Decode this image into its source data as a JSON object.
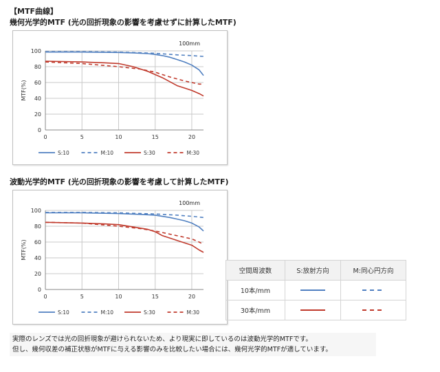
{
  "headings": {
    "section": "【MTF曲線】",
    "geometric": "幾何光学的MTF (光の回折現象の影響を考慮せずに計算したMTF)",
    "wave": "波動光学的MTF (光の回折現象の影響を考慮して計算したMTF)"
  },
  "colors": {
    "sagittal": "#4f7fc0",
    "meridional_10": "#4f7fc0",
    "series_30": "#c0392b"
  },
  "chart_data": [
    {
      "type": "line",
      "title": "",
      "annotation": "100mm",
      "ylabel": "MTF(%)",
      "xlabel": "",
      "xlim": [
        0,
        21.6
      ],
      "ylim": [
        0,
        100
      ],
      "xticks": [
        0,
        5,
        10,
        15,
        20
      ],
      "yticks": [
        0,
        20,
        40,
        60,
        80,
        100
      ],
      "grid": true,
      "legend_position": "bottom",
      "series": [
        {
          "name": "S:10",
          "color": "#4f7fc0",
          "dash": "solid",
          "x": [
            0,
            5,
            10,
            12,
            14,
            15,
            16,
            17,
            18,
            19,
            20,
            21,
            21.6
          ],
          "y": [
            98.5,
            98.5,
            98,
            97.5,
            96.5,
            95.5,
            94,
            92,
            89,
            86,
            82,
            76,
            69
          ]
        },
        {
          "name": "M:10",
          "color": "#4f7fc0",
          "dash": "dashed",
          "x": [
            0,
            5,
            10,
            15,
            18,
            20,
            21.6
          ],
          "y": [
            99,
            99,
            98.5,
            97,
            95,
            94,
            93
          ]
        },
        {
          "name": "S:30",
          "color": "#c0392b",
          "dash": "solid",
          "x": [
            0,
            5,
            8,
            10,
            12,
            14,
            16,
            18,
            19,
            20,
            21,
            21.6
          ],
          "y": [
            87,
            86,
            85,
            84,
            80,
            74,
            66,
            56,
            53,
            50,
            46,
            43
          ]
        },
        {
          "name": "M:30",
          "color": "#c0392b",
          "dash": "dashed",
          "x": [
            0,
            5,
            10,
            13,
            15,
            17,
            19,
            20,
            21,
            21.6
          ],
          "y": [
            86,
            84,
            80,
            77,
            73,
            67,
            62,
            60,
            58,
            58
          ]
        }
      ]
    },
    {
      "type": "line",
      "title": "",
      "annotation": "100mm",
      "ylabel": "MTF(%)",
      "xlabel": "",
      "xlim": [
        0,
        21.6
      ],
      "ylim": [
        0,
        100
      ],
      "xticks": [
        0,
        5,
        10,
        15,
        20
      ],
      "yticks": [
        0,
        20,
        40,
        60,
        80,
        100
      ],
      "grid": true,
      "legend_position": "bottom",
      "series": [
        {
          "name": "S:10",
          "color": "#4f7fc0",
          "dash": "solid",
          "x": [
            0,
            5,
            10,
            13,
            15,
            17,
            18,
            19,
            20,
            21,
            21.6
          ],
          "y": [
            97,
            97,
            96,
            95,
            94,
            91,
            89,
            87,
            84,
            79,
            74
          ]
        },
        {
          "name": "M:10",
          "color": "#4f7fc0",
          "dash": "dashed",
          "x": [
            0,
            5,
            10,
            15,
            18,
            20,
            21.6
          ],
          "y": [
            97.5,
            97.5,
            97,
            95.5,
            94,
            92.5,
            91
          ]
        },
        {
          "name": "S:30",
          "color": "#c0392b",
          "dash": "solid",
          "x": [
            0,
            5,
            8,
            10,
            12,
            14,
            15,
            16,
            18,
            20,
            21,
            21.6
          ],
          "y": [
            85,
            84,
            83,
            82,
            79,
            76,
            73,
            68,
            62,
            56,
            50,
            47
          ]
        },
        {
          "name": "M:30",
          "color": "#c0392b",
          "dash": "dashed",
          "x": [
            0,
            5,
            10,
            13,
            15,
            17,
            19,
            20,
            21,
            21.6
          ],
          "y": [
            85,
            84,
            80,
            77,
            74,
            70,
            66,
            64,
            60,
            57
          ]
        }
      ]
    }
  ],
  "legend_table": {
    "headers": [
      "空間周波数",
      "S:放射方向",
      "M:同心円方向"
    ],
    "rows": [
      {
        "label": "10本/mm",
        "s_color": "#4f7fc0",
        "m_color": "#4f7fc0"
      },
      {
        "label": "30本/mm",
        "s_color": "#c0392b",
        "m_color": "#c0392b"
      }
    ]
  },
  "notes": [
    "実際のレンズでは光の回折現象が避けられないため、より現実に即しているのは波動光学的MTFです。",
    "但し、幾何収差の補正状態がMTFに与える影響のみを比較したい場合には、幾何光学的MTFが適しています。"
  ]
}
